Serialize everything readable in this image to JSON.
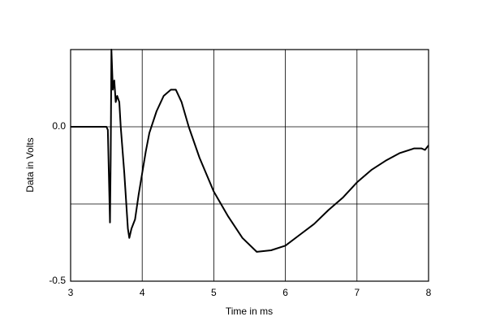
{
  "chart_data": {
    "type": "line",
    "xlabel": "Time in ms",
    "ylabel": "Data in Volts",
    "xlim": [
      3,
      8
    ],
    "xticks": [
      3,
      4,
      5,
      6,
      7,
      8
    ],
    "ylim": [
      -0.5,
      0.25
    ],
    "yticks": [
      {
        "value": -0.5,
        "label": "-0.5"
      },
      {
        "value": -0.25,
        "label": null
      },
      {
        "value": 0,
        "label": "0.0"
      }
    ],
    "grid": true,
    "series": [
      {
        "color": "#000000",
        "x": [
          3.0,
          3.5,
          3.52,
          3.55,
          3.56,
          3.57,
          3.59,
          3.61,
          3.63,
          3.65,
          3.68,
          3.7,
          3.75,
          3.8,
          3.82,
          3.85,
          3.9,
          3.95,
          4.0,
          4.05,
          4.1,
          4.2,
          4.3,
          4.4,
          4.47,
          4.55,
          4.65,
          4.8,
          5.0,
          5.2,
          5.4,
          5.6,
          5.8,
          6.0,
          6.2,
          6.4,
          6.6,
          6.8,
          7.0,
          7.2,
          7.4,
          7.6,
          7.8,
          7.9,
          7.95,
          8.0
        ],
        "values": [
          0.0,
          0.0,
          -0.01,
          -0.31,
          -0.1,
          0.25,
          0.12,
          0.15,
          0.08,
          0.1,
          0.08,
          0.0,
          -0.15,
          -0.33,
          -0.36,
          -0.33,
          -0.3,
          -0.22,
          -0.15,
          -0.08,
          -0.02,
          0.05,
          0.1,
          0.12,
          0.12,
          0.08,
          0.0,
          -0.1,
          -0.21,
          -0.29,
          -0.36,
          -0.405,
          -0.4,
          -0.385,
          -0.35,
          -0.315,
          -0.27,
          -0.23,
          -0.18,
          -0.14,
          -0.11,
          -0.085,
          -0.07,
          -0.07,
          -0.075,
          -0.06
        ]
      }
    ]
  }
}
